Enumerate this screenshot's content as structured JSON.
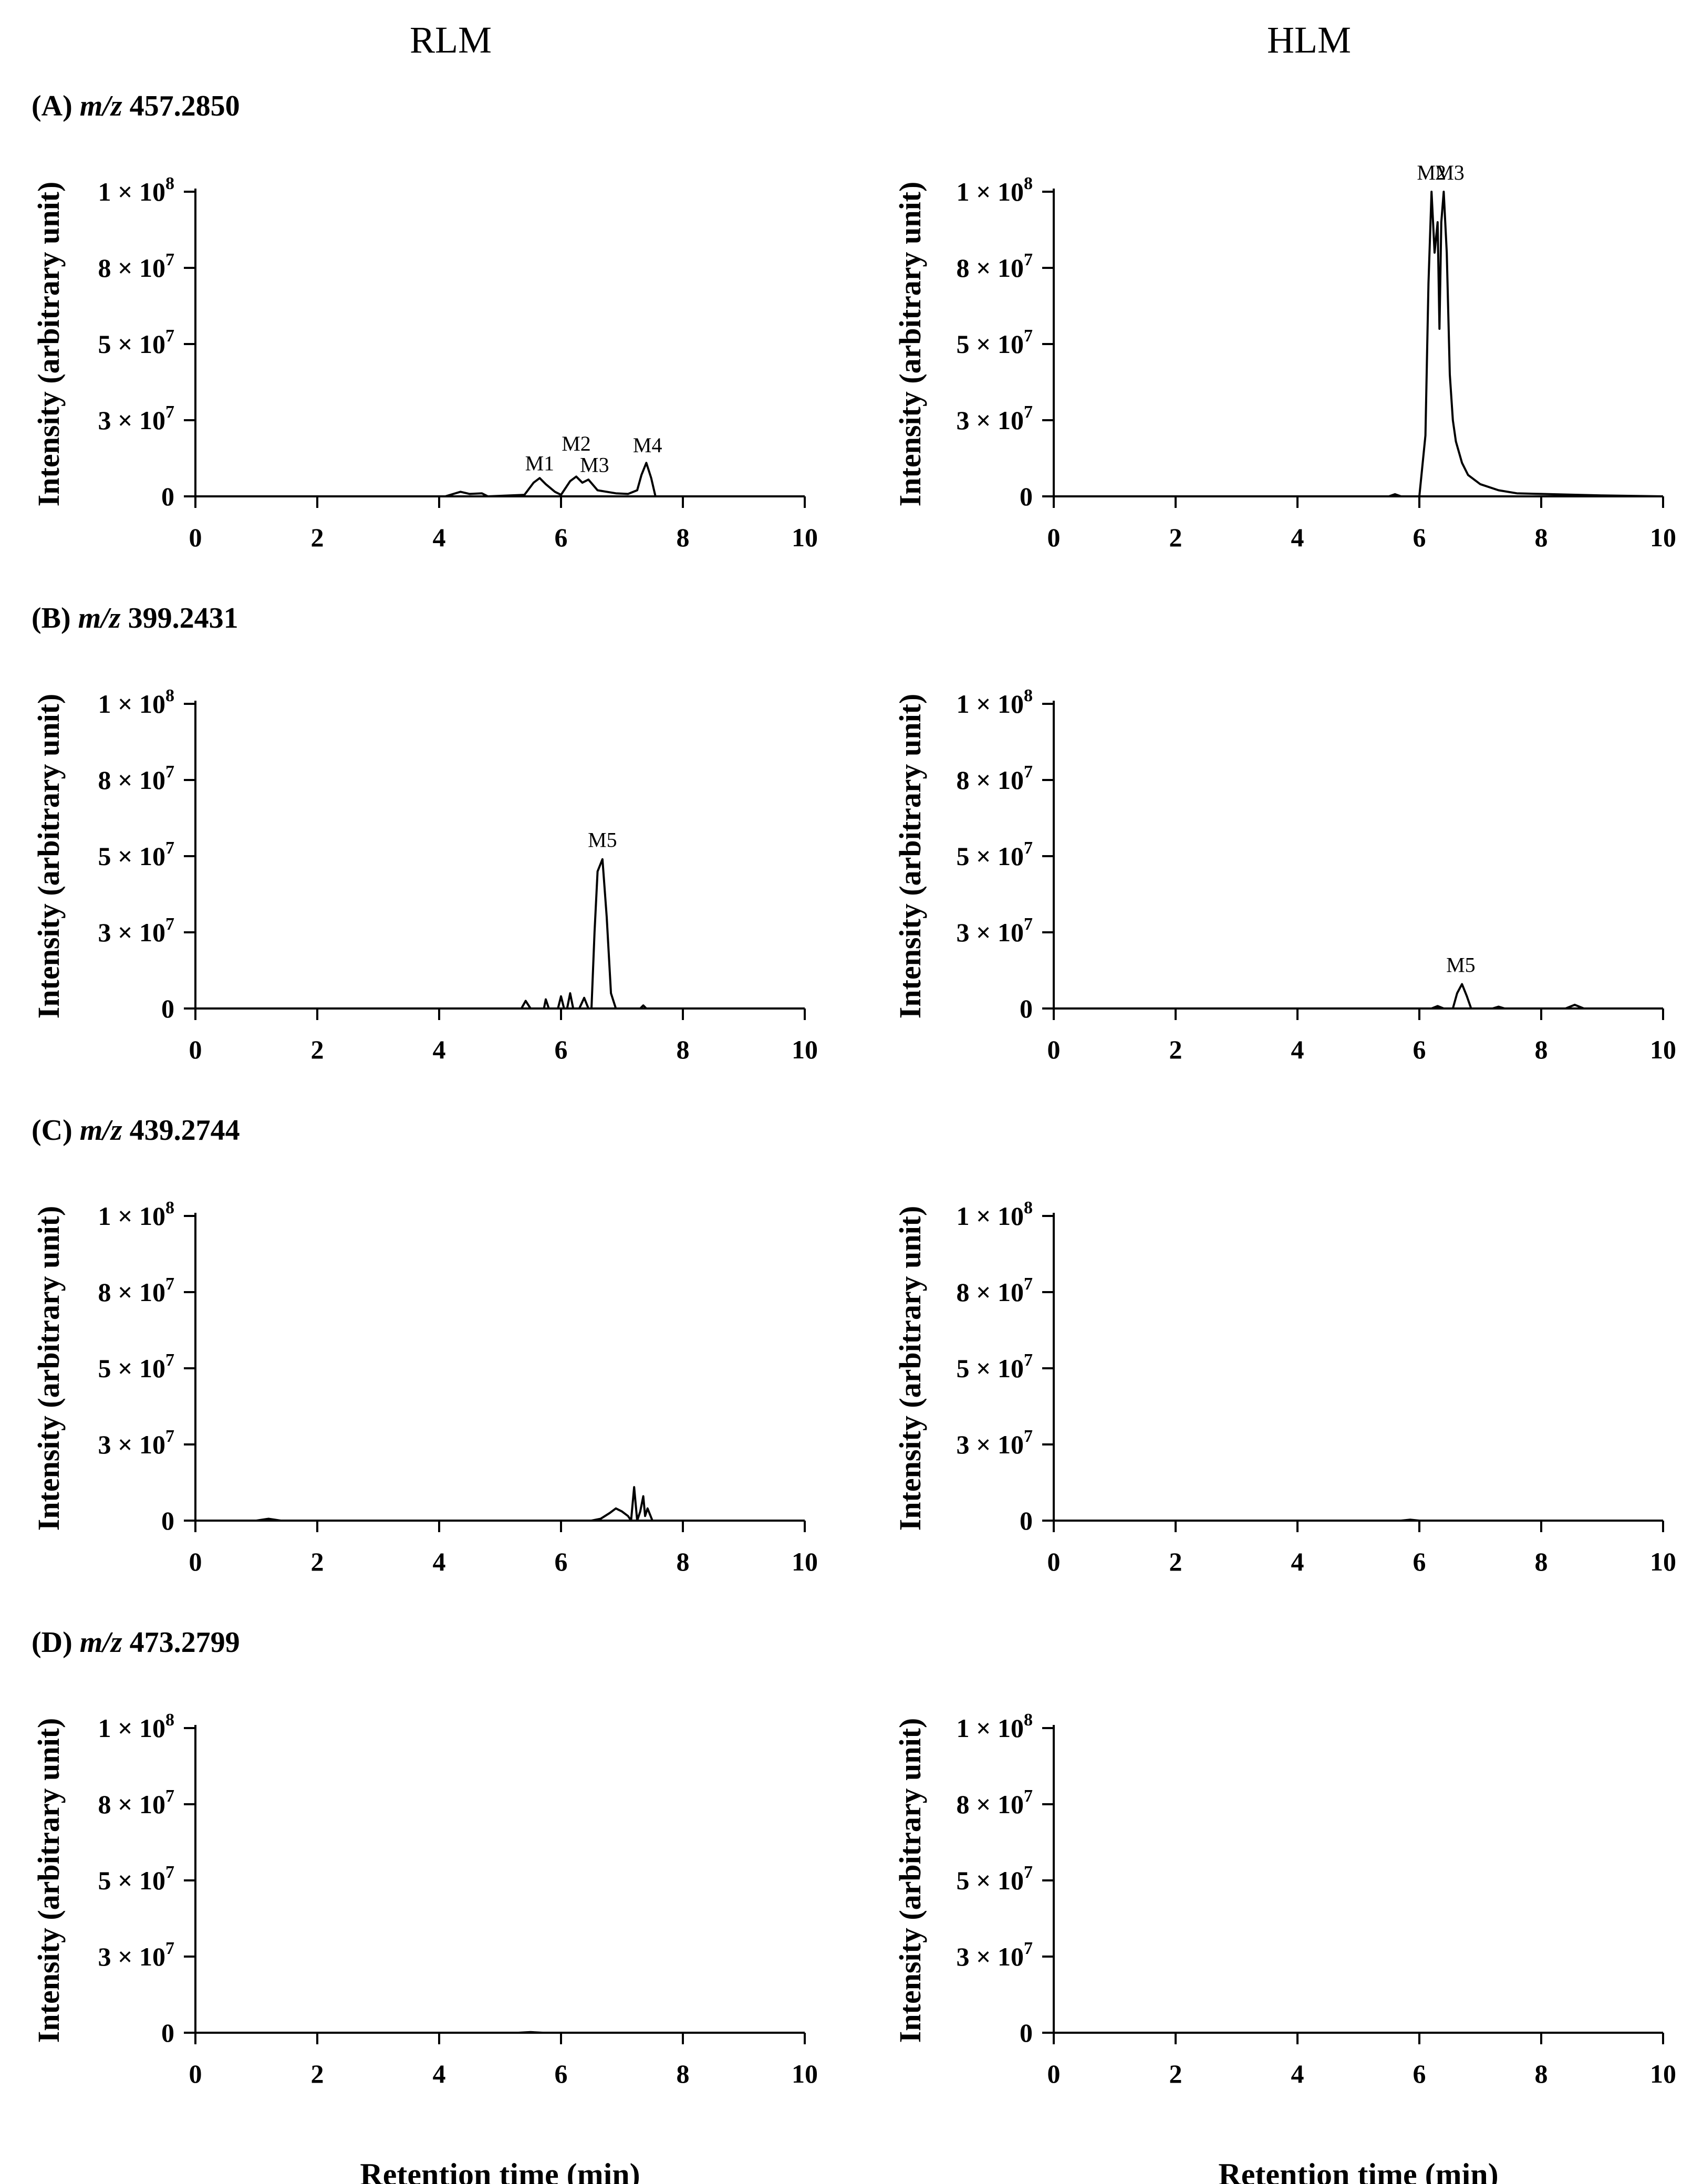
{
  "columns": [
    "RLM",
    "HLM"
  ],
  "x_axis_label": "Retention time (min)",
  "chart_data": [
    {
      "type": "line",
      "panel": "(A)",
      "mz_prefix": "m/z",
      "mz_value": "457.2850",
      "column": "RLM",
      "xlabel": "",
      "ylabel": "Intensity (arbitrary unit)",
      "xlim": [
        0,
        10
      ],
      "ylim": [
        0,
        100000000
      ],
      "x_ticks": [
        "0",
        "2",
        "4",
        "6",
        "8",
        "10"
      ],
      "y_tick_labels": [
        "0",
        "3 × 10",
        "5 × 10",
        "8 × 10",
        "1 × 10"
      ],
      "y_tick_exponents": [
        "",
        "7",
        "7",
        "7",
        "8"
      ],
      "y_tick_values": [
        0,
        25000000,
        50000000,
        75000000,
        100000000
      ],
      "series": [
        {
          "name": "m/z 457.2850 RLM",
          "x": [
            0,
            4.1,
            4.35,
            4.5,
            4.7,
            4.8,
            5.4,
            5.55,
            5.65,
            5.75,
            5.9,
            6.0,
            6.15,
            6.25,
            6.35,
            6.45,
            6.6,
            6.75,
            6.9,
            7.1,
            7.25,
            7.32,
            7.4,
            7.48,
            7.55,
            8.0,
            10
          ],
          "y": [
            0,
            0,
            1500000,
            800000,
            1000000,
            0,
            500000,
            4500000,
            6000000,
            4000000,
            1500000,
            500000,
            5000000,
            6500000,
            4500000,
            5500000,
            2000000,
            1500000,
            1000000,
            800000,
            2000000,
            7000000,
            11000000,
            6000000,
            0,
            0,
            0
          ]
        }
      ],
      "annotations": [
        {
          "label": "M1",
          "x": 5.65,
          "y": 8500000
        },
        {
          "label": "M2",
          "x": 6.25,
          "y": 15000000
        },
        {
          "label": "M3",
          "x": 6.55,
          "y": 8000000
        },
        {
          "label": "M4",
          "x": 7.42,
          "y": 14500000
        }
      ]
    },
    {
      "type": "line",
      "panel": "",
      "mz_prefix": "",
      "mz_value": "",
      "column": "HLM",
      "xlabel": "",
      "ylabel": "Intensity (arbitrary unit)",
      "xlim": [
        0,
        10
      ],
      "ylim": [
        0,
        100000000
      ],
      "x_ticks": [
        "0",
        "2",
        "4",
        "6",
        "8",
        "10"
      ],
      "y_tick_labels": [
        "0",
        "3 × 10",
        "5 × 10",
        "8 × 10",
        "1 × 10"
      ],
      "y_tick_exponents": [
        "",
        "7",
        "7",
        "7",
        "8"
      ],
      "y_tick_values": [
        0,
        25000000,
        50000000,
        75000000,
        100000000
      ],
      "series": [
        {
          "name": "m/z 457.2850 HLM",
          "x": [
            0,
            5.5,
            5.6,
            5.7,
            6.0,
            6.1,
            6.15,
            6.2,
            6.25,
            6.3,
            6.33,
            6.36,
            6.4,
            6.45,
            6.5,
            6.55,
            6.6,
            6.7,
            6.8,
            7.0,
            7.3,
            7.6,
            8.0,
            9.0,
            10
          ],
          "y": [
            0,
            0,
            700000,
            0,
            0,
            20000000,
            70000000,
            100000000,
            80000000,
            90000000,
            55000000,
            90000000,
            100000000,
            80000000,
            40000000,
            25000000,
            18000000,
            11000000,
            7000000,
            4000000,
            2000000,
            1000000,
            800000,
            300000,
            0
          ]
        }
      ],
      "annotations": [
        {
          "label": "M2",
          "x": 6.2,
          "y": 104000000
        },
        {
          "label": "M3",
          "x": 6.5,
          "y": 104000000
        }
      ]
    },
    {
      "type": "line",
      "panel": "(B)",
      "mz_prefix": "m/z",
      "mz_value": "399.2431",
      "column": "RLM",
      "xlabel": "",
      "ylabel": "Intensity (arbitrary unit)",
      "xlim": [
        0,
        10
      ],
      "ylim": [
        0,
        100000000
      ],
      "x_ticks": [
        "0",
        "2",
        "4",
        "6",
        "8",
        "10"
      ],
      "y_tick_labels": [
        "0",
        "3 × 10",
        "5 × 10",
        "8 × 10",
        "1 × 10"
      ],
      "y_tick_exponents": [
        "",
        "7",
        "7",
        "7",
        "8"
      ],
      "y_tick_values": [
        0,
        25000000,
        50000000,
        75000000,
        100000000
      ],
      "series": [
        {
          "name": "m/z 399.2431 RLM",
          "x": [
            0,
            5.35,
            5.42,
            5.5,
            5.72,
            5.75,
            5.8,
            5.95,
            6.0,
            6.05,
            6.1,
            6.15,
            6.2,
            6.3,
            6.38,
            6.45,
            6.5,
            6.55,
            6.6,
            6.68,
            6.75,
            6.82,
            6.9,
            7.3,
            7.35,
            7.4,
            10
          ],
          "y": [
            0,
            0,
            2500000,
            0,
            0,
            3000000,
            0,
            0,
            4000000,
            0,
            0,
            5000000,
            0,
            0,
            3500000,
            0,
            0,
            25000000,
            45000000,
            49000000,
            30000000,
            5000000,
            0,
            0,
            1000000,
            0,
            0
          ]
        }
      ],
      "annotations": [
        {
          "label": "M5",
          "x": 6.68,
          "y": 53000000
        }
      ]
    },
    {
      "type": "line",
      "panel": "",
      "mz_prefix": "",
      "mz_value": "",
      "column": "HLM",
      "xlabel": "",
      "ylabel": "Intensity (arbitrary unit)",
      "xlim": [
        0,
        10
      ],
      "ylim": [
        0,
        100000000
      ],
      "x_ticks": [
        "0",
        "2",
        "4",
        "6",
        "8",
        "10"
      ],
      "y_tick_labels": [
        "0",
        "3 × 10",
        "5 × 10",
        "8 × 10",
        "1 × 10"
      ],
      "y_tick_exponents": [
        "",
        "7",
        "7",
        "7",
        "8"
      ],
      "y_tick_values": [
        0,
        25000000,
        50000000,
        75000000,
        100000000
      ],
      "series": [
        {
          "name": "m/z 399.2431 HLM",
          "x": [
            0,
            6.2,
            6.3,
            6.4,
            6.55,
            6.62,
            6.7,
            6.78,
            6.85,
            7.2,
            7.3,
            7.4,
            8.4,
            8.55,
            8.7,
            10
          ],
          "y": [
            0,
            0,
            800000,
            0,
            0,
            5000000,
            8000000,
            4000000,
            0,
            0,
            600000,
            0,
            0,
            1200000,
            0,
            0
          ]
        }
      ],
      "annotations": [
        {
          "label": "M5",
          "x": 6.68,
          "y": 12000000
        }
      ]
    },
    {
      "type": "line",
      "panel": "(C)",
      "mz_prefix": "m/z",
      "mz_value": "439.2744",
      "column": "RLM",
      "xlabel": "",
      "ylabel": "Intensity (arbitrary unit)",
      "xlim": [
        0,
        10
      ],
      "ylim": [
        0,
        100000000
      ],
      "x_ticks": [
        "0",
        "2",
        "4",
        "6",
        "8",
        "10"
      ],
      "y_tick_labels": [
        "0",
        "3 × 10",
        "5 × 10",
        "8 × 10",
        "1 × 10"
      ],
      "y_tick_exponents": [
        "",
        "7",
        "7",
        "7",
        "8"
      ],
      "y_tick_values": [
        0,
        25000000,
        50000000,
        75000000,
        100000000
      ],
      "series": [
        {
          "name": "m/z 439.2744 RLM",
          "x": [
            0,
            1.0,
            1.2,
            1.4,
            6.5,
            6.65,
            6.8,
            6.9,
            7.0,
            7.1,
            7.15,
            7.2,
            7.25,
            7.3,
            7.35,
            7.38,
            7.42,
            7.5,
            10
          ],
          "y": [
            0,
            0,
            600000,
            0,
            0,
            600000,
            2500000,
            4000000,
            3000000,
            1500000,
            0,
            11000000,
            0,
            3000000,
            8000000,
            1500000,
            4000000,
            0,
            0
          ]
        }
      ],
      "annotations": []
    },
    {
      "type": "line",
      "panel": "",
      "mz_prefix": "",
      "mz_value": "",
      "column": "HLM",
      "xlabel": "",
      "ylabel": "Intensity (arbitrary unit)",
      "xlim": [
        0,
        10
      ],
      "ylim": [
        0,
        100000000
      ],
      "x_ticks": [
        "0",
        "2",
        "4",
        "6",
        "8",
        "10"
      ],
      "y_tick_labels": [
        "0",
        "3 × 10",
        "5 × 10",
        "8 × 10",
        "1 × 10"
      ],
      "y_tick_exponents": [
        "",
        "7",
        "7",
        "7",
        "8"
      ],
      "y_tick_values": [
        0,
        25000000,
        50000000,
        75000000,
        100000000
      ],
      "series": [
        {
          "name": "m/z 439.2744 HLM",
          "x": [
            0,
            5.7,
            5.85,
            6.0,
            10
          ],
          "y": [
            0,
            0,
            300000,
            0,
            0
          ]
        }
      ],
      "annotations": []
    },
    {
      "type": "line",
      "panel": "(D)",
      "mz_prefix": "m/z",
      "mz_value": "473.2799",
      "column": "RLM",
      "xlabel": "Retention time (min)",
      "ylabel": "Intensity (arbitrary unit)",
      "xlim": [
        0,
        10
      ],
      "ylim": [
        0,
        100000000
      ],
      "x_ticks": [
        "0",
        "2",
        "4",
        "6",
        "8",
        "10"
      ],
      "y_tick_labels": [
        "0",
        "3 × 10",
        "5 × 10",
        "8 × 10",
        "1 × 10"
      ],
      "y_tick_exponents": [
        "",
        "7",
        "7",
        "7",
        "8"
      ],
      "y_tick_values": [
        0,
        25000000,
        50000000,
        75000000,
        100000000
      ],
      "series": [
        {
          "name": "m/z 473.2799 RLM",
          "x": [
            0,
            5.3,
            5.5,
            5.7,
            10
          ],
          "y": [
            0,
            0,
            200000,
            0,
            0
          ]
        }
      ],
      "annotations": []
    },
    {
      "type": "line",
      "panel": "",
      "mz_prefix": "",
      "mz_value": "",
      "column": "HLM",
      "xlabel": "Retention time (min)",
      "ylabel": "Intensity (arbitrary unit)",
      "xlim": [
        0,
        10
      ],
      "ylim": [
        0,
        100000000
      ],
      "x_ticks": [
        "0",
        "2",
        "4",
        "6",
        "8",
        "10"
      ],
      "y_tick_labels": [
        "0",
        "3 × 10",
        "5 × 10",
        "8 × 10",
        "1 × 10"
      ],
      "y_tick_exponents": [
        "",
        "7",
        "7",
        "7",
        "8"
      ],
      "y_tick_values": [
        0,
        25000000,
        50000000,
        75000000,
        100000000
      ],
      "series": [
        {
          "name": "m/z 473.2799 HLM",
          "x": [
            0,
            10
          ],
          "y": [
            0,
            0
          ]
        }
      ],
      "annotations": []
    }
  ]
}
